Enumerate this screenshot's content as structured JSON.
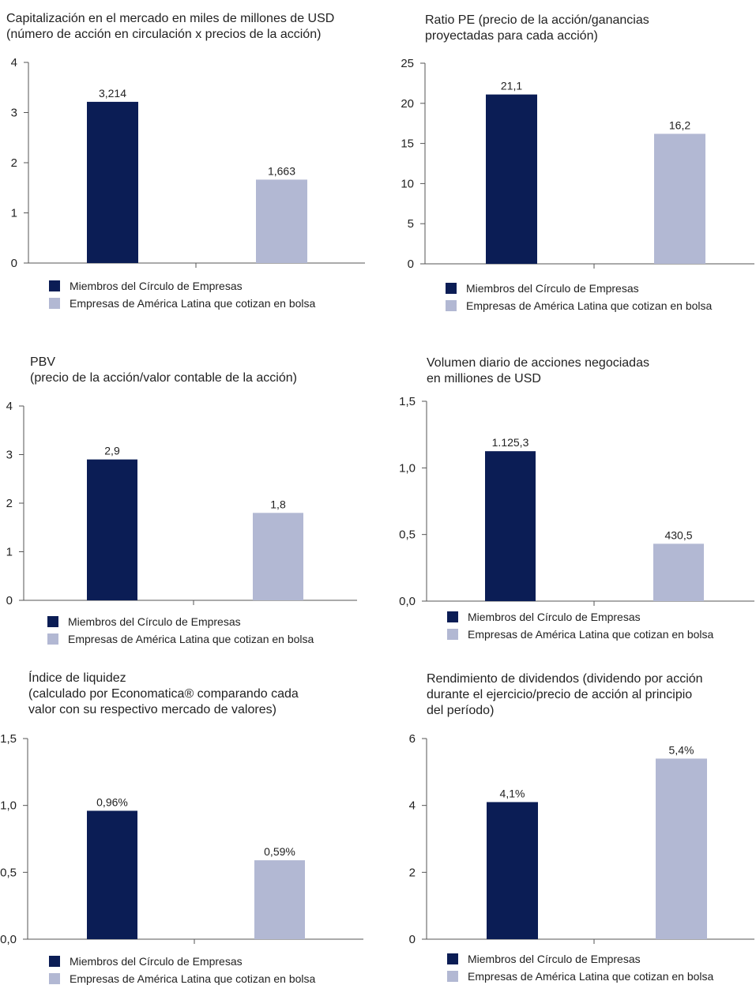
{
  "colors": {
    "members": "#0b1d55",
    "latam": "#b2b8d3",
    "axis": "#555555",
    "text": "#222222"
  },
  "legend": {
    "members": "Miembros del Círculo de Empresas",
    "latam": "Empresas de América Latina que cotizan en bolsa"
  },
  "chart_data": [
    {
      "type": "bar",
      "title": "Capitalización en el mercado en miles de millones de USD\n(número de acción en circulación x precios de la acción)",
      "categories": [
        "Miembros del Círculo de Empresas",
        "Empresas de América Latina que cotizan en bolsa"
      ],
      "values": [
        3.214,
        1.663
      ],
      "value_labels": [
        "3,214",
        "1,663"
      ],
      "ylim": [
        0,
        4
      ],
      "yticks": [
        "0",
        "1",
        "2",
        "3",
        "4"
      ],
      "grid": false,
      "legend_position": "bottom"
    },
    {
      "type": "bar",
      "title": "Ratio PE (precio de la acción/ganancias\nproyectadas para cada acción)",
      "categories": [
        "Miembros del Círculo de Empresas",
        "Empresas de América Latina que cotizan en bolsa"
      ],
      "values": [
        21.1,
        16.2
      ],
      "value_labels": [
        "21,1",
        "16,2"
      ],
      "ylim": [
        0,
        25
      ],
      "yticks": [
        "0",
        "5",
        "10",
        "15",
        "20",
        "25"
      ],
      "grid": false,
      "legend_position": "bottom"
    },
    {
      "type": "bar",
      "title": "PBV\n(precio de la acción/valor contable de la acción)",
      "categories": [
        "Miembros del Círculo de Empresas",
        "Empresas de América Latina que cotizan en bolsa"
      ],
      "values": [
        2.9,
        1.8
      ],
      "value_labels": [
        "2,9",
        "1,8"
      ],
      "ylim": [
        0,
        4
      ],
      "yticks": [
        "0",
        "1",
        "2",
        "3",
        "4"
      ],
      "grid": false,
      "legend_position": "bottom"
    },
    {
      "type": "bar",
      "title": "Volumen diario de acciones negociadas\nen milliones de USD",
      "categories": [
        "Miembros del Círculo de Empresas",
        "Empresas de América Latina que cotizan en bolsa"
      ],
      "values": [
        1.1253,
        0.4305
      ],
      "value_labels": [
        "1.125,3",
        "430,5"
      ],
      "ylim": [
        0,
        1.5
      ],
      "yticks": [
        "0,0",
        "0,5",
        "1,0",
        "1,5"
      ],
      "grid": false,
      "legend_position": "bottom"
    },
    {
      "type": "bar",
      "title": "Índice de liquidez\n(calculado por Economatica® comparando cada\nvalor con su respectivo mercado de valores)",
      "categories": [
        "Miembros del Círculo de Empresas",
        "Empresas de América Latina que cotizan en bolsa"
      ],
      "values": [
        0.96,
        0.59
      ],
      "value_labels": [
        "0,96%",
        "0,59%"
      ],
      "ylim": [
        0,
        1.5
      ],
      "yticks": [
        "0,0",
        "0,5",
        "1,0",
        "1,5"
      ],
      "grid": false,
      "legend_position": "bottom"
    },
    {
      "type": "bar",
      "title": "Rendimiento de dividendos (dividendo por acción\ndurante el ejercicio/precio de acción al principio\ndel período)",
      "categories": [
        "Miembros del Círculo de Empresas",
        "Empresas de América Latina que cotizan en bolsa"
      ],
      "values": [
        4.1,
        5.4
      ],
      "value_labels": [
        "4,1%",
        "5,4%"
      ],
      "ylim": [
        0,
        6
      ],
      "yticks": [
        "0",
        "2",
        "4",
        "6"
      ],
      "grid": false,
      "legend_position": "bottom"
    }
  ]
}
